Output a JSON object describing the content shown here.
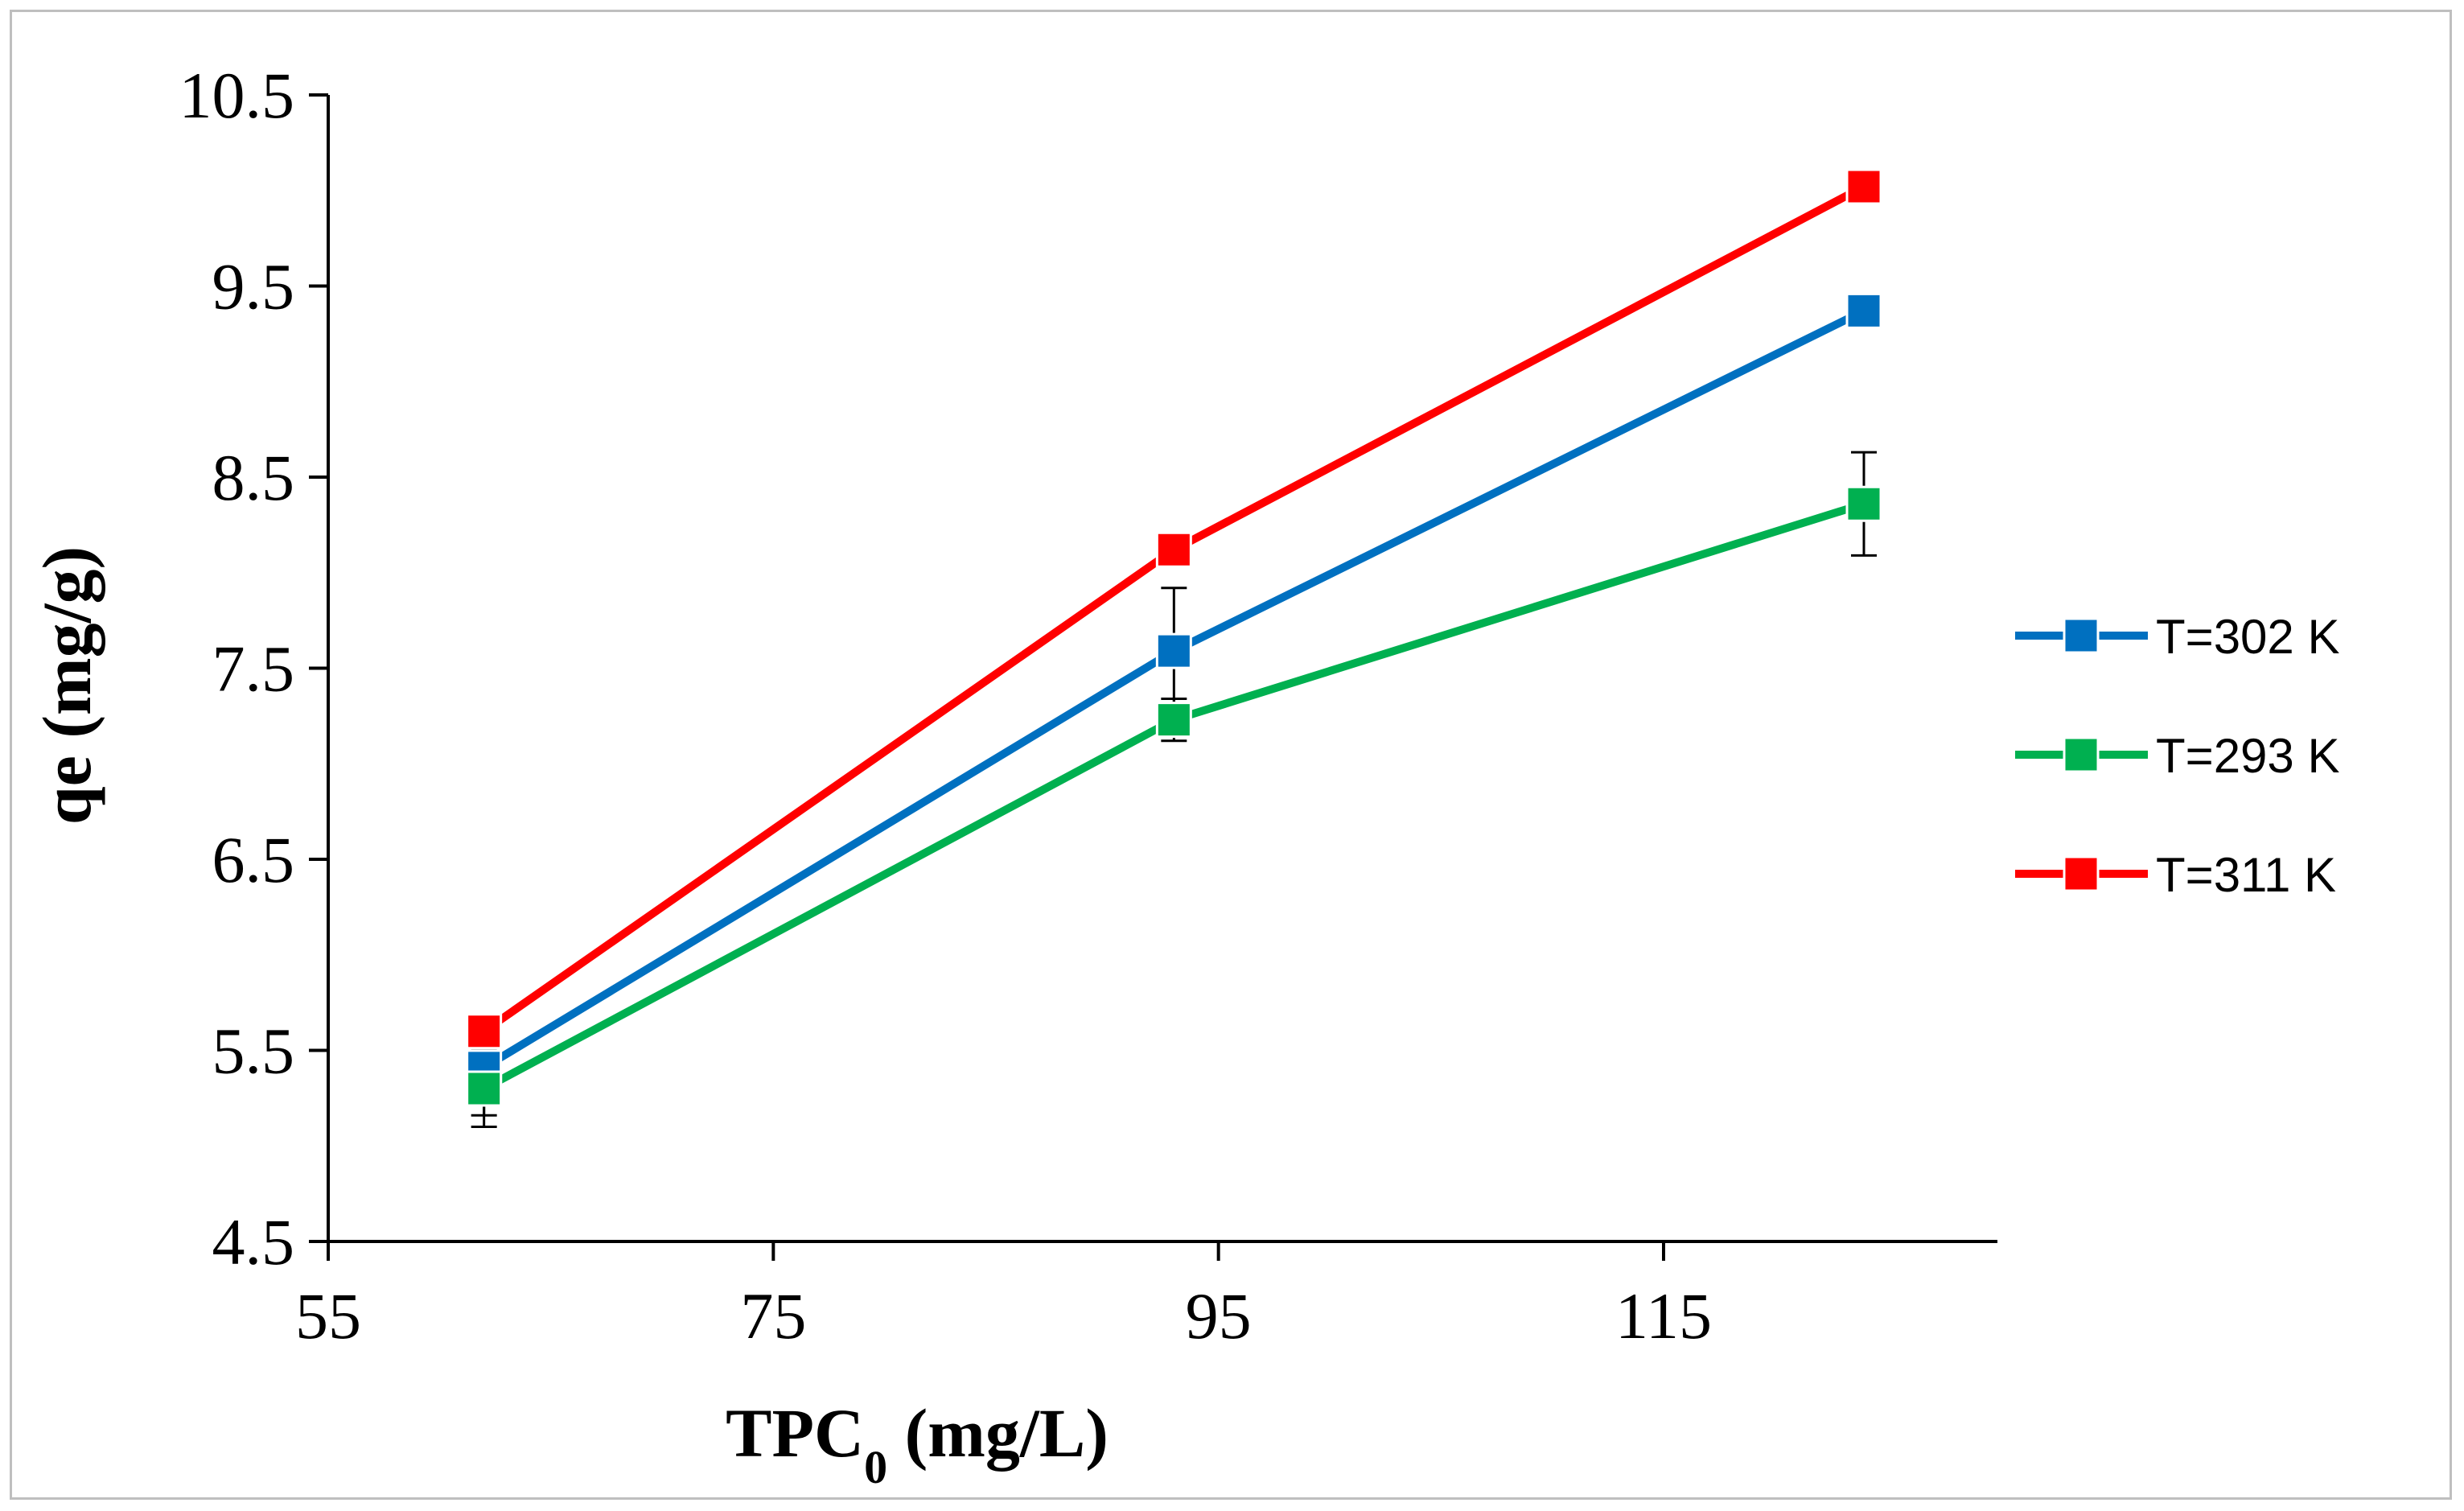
{
  "chart_data": {
    "type": "line",
    "title": "",
    "xlabel_main": "TPC",
    "xlabel_sub": "0",
    "xlabel_unit": " (mg/L)",
    "ylabel": "qe (mg/g)",
    "xlim": [
      55,
      130
    ],
    "ylim": [
      4.5,
      10.5
    ],
    "xticks": [
      55,
      75,
      95,
      115
    ],
    "xtick_labels": [
      "55",
      "75",
      "95",
      "115"
    ],
    "yticks": [
      4.5,
      5.5,
      6.5,
      7.5,
      8.5,
      9.5,
      10.5
    ],
    "ytick_labels": [
      "4.5",
      "5.5",
      "6.5",
      "7.5",
      "8.5",
      "9.5",
      "10.5"
    ],
    "legend_position": "right",
    "x": [
      62,
      93,
      124
    ],
    "series": [
      {
        "name": "T=302 K",
        "color": "#0070C0",
        "values": [
          5.41,
          7.59,
          9.37
        ],
        "errors": [
          0.25,
          0.33,
          0
        ]
      },
      {
        "name": "T=293 K",
        "color": "#00B050",
        "values": [
          5.3,
          7.23,
          8.36
        ],
        "errors": [
          0.2,
          0.11,
          0.27
        ]
      },
      {
        "name": "T=311 K",
        "color": "#FF0000",
        "values": [
          5.6,
          8.12,
          10.02
        ],
        "errors": [
          0.08,
          0,
          0
        ]
      }
    ]
  }
}
